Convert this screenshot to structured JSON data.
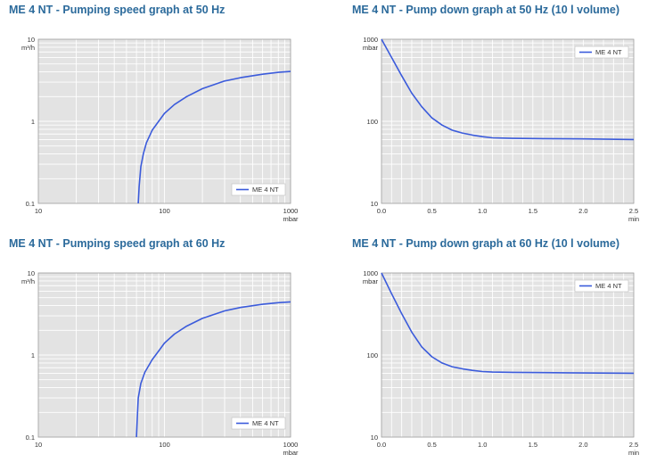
{
  "colors": {
    "title": "#2b6a9b",
    "series": "#3b5bdb",
    "plot_bg": "#e3e3e3",
    "grid": "#ffffff"
  },
  "chart_data": [
    {
      "type": "line",
      "title": "ME 4 NT - Pumping speed graph at 50 Hz",
      "xscale": "log",
      "yscale": "log",
      "xlim": [
        10,
        1000
      ],
      "ylim": [
        0.1,
        10
      ],
      "x_ticks": [
        "10",
        "100",
        "1000"
      ],
      "y_ticks": [
        "0.1",
        "1",
        "10"
      ],
      "xlabel": "mbar",
      "ylabel": "m³/h",
      "grid": true,
      "legend": "bottom-right",
      "series": [
        {
          "name": "ME 4 NT",
          "x": [
            62,
            63,
            65,
            68,
            72,
            80,
            90,
            100,
            120,
            150,
            200,
            300,
            400,
            600,
            800,
            1000
          ],
          "y": [
            0.1,
            0.16,
            0.28,
            0.4,
            0.55,
            0.78,
            1.0,
            1.25,
            1.6,
            2.0,
            2.5,
            3.1,
            3.4,
            3.75,
            3.95,
            4.05
          ]
        }
      ]
    },
    {
      "type": "line",
      "title": "ME 4 NT - Pump down graph at 50 Hz (10 l volume)",
      "xscale": "linear",
      "yscale": "log",
      "xlim": [
        0,
        2.5
      ],
      "ylim": [
        10,
        1000
      ],
      "x_ticks": [
        "0.0",
        "0.5",
        "1.0",
        "1.5",
        "2.0",
        "2.5"
      ],
      "y_ticks": [
        "10",
        "100",
        "1000"
      ],
      "xlabel": "min",
      "ylabel": "mbar",
      "grid": true,
      "legend": "top-right",
      "series": [
        {
          "name": "ME 4 NT",
          "x": [
            0,
            0.1,
            0.2,
            0.3,
            0.4,
            0.5,
            0.6,
            0.7,
            0.8,
            0.9,
            1.0,
            1.1,
            1.3,
            1.6,
            2.0,
            2.5
          ],
          "y": [
            1000,
            600,
            360,
            220,
            150,
            110,
            90,
            78,
            72,
            68,
            65,
            63,
            62,
            61.5,
            61,
            60
          ]
        }
      ]
    },
    {
      "type": "line",
      "title": "ME 4 NT - Pumping speed graph at 60 Hz",
      "xscale": "log",
      "yscale": "log",
      "xlim": [
        10,
        1000
      ],
      "ylim": [
        0.1,
        10
      ],
      "x_ticks": [
        "10",
        "100",
        "1000"
      ],
      "y_ticks": [
        "0.1",
        "1",
        "10"
      ],
      "xlabel": "mbar",
      "ylabel": "m³/h",
      "grid": true,
      "legend": "bottom-right",
      "series": [
        {
          "name": "ME 4 NT",
          "x": [
            60,
            61,
            62,
            65,
            70,
            80,
            90,
            100,
            120,
            150,
            200,
            300,
            400,
            600,
            800,
            1000
          ],
          "y": [
            0.1,
            0.18,
            0.3,
            0.45,
            0.62,
            0.88,
            1.12,
            1.4,
            1.8,
            2.25,
            2.8,
            3.45,
            3.8,
            4.15,
            4.35,
            4.45
          ]
        }
      ]
    },
    {
      "type": "line",
      "title": "ME 4 NT - Pump down graph at 60 Hz (10 l volume)",
      "xscale": "linear",
      "yscale": "log",
      "xlim": [
        0,
        2.5
      ],
      "ylim": [
        10,
        1000
      ],
      "x_ticks": [
        "0.0",
        "0.5",
        "1.0",
        "1.5",
        "2.0",
        "2.5"
      ],
      "y_ticks": [
        "10",
        "100",
        "1000"
      ],
      "xlabel": "min",
      "ylabel": "mbar",
      "grid": true,
      "legend": "top-right",
      "series": [
        {
          "name": "ME 4 NT",
          "x": [
            0,
            0.1,
            0.2,
            0.3,
            0.4,
            0.5,
            0.6,
            0.7,
            0.8,
            0.9,
            1.0,
            1.1,
            1.3,
            1.6,
            2.0,
            2.5
          ],
          "y": [
            1000,
            560,
            320,
            190,
            125,
            95,
            80,
            72,
            68,
            65,
            63,
            62,
            61.5,
            61,
            60.5,
            60
          ]
        }
      ]
    }
  ]
}
